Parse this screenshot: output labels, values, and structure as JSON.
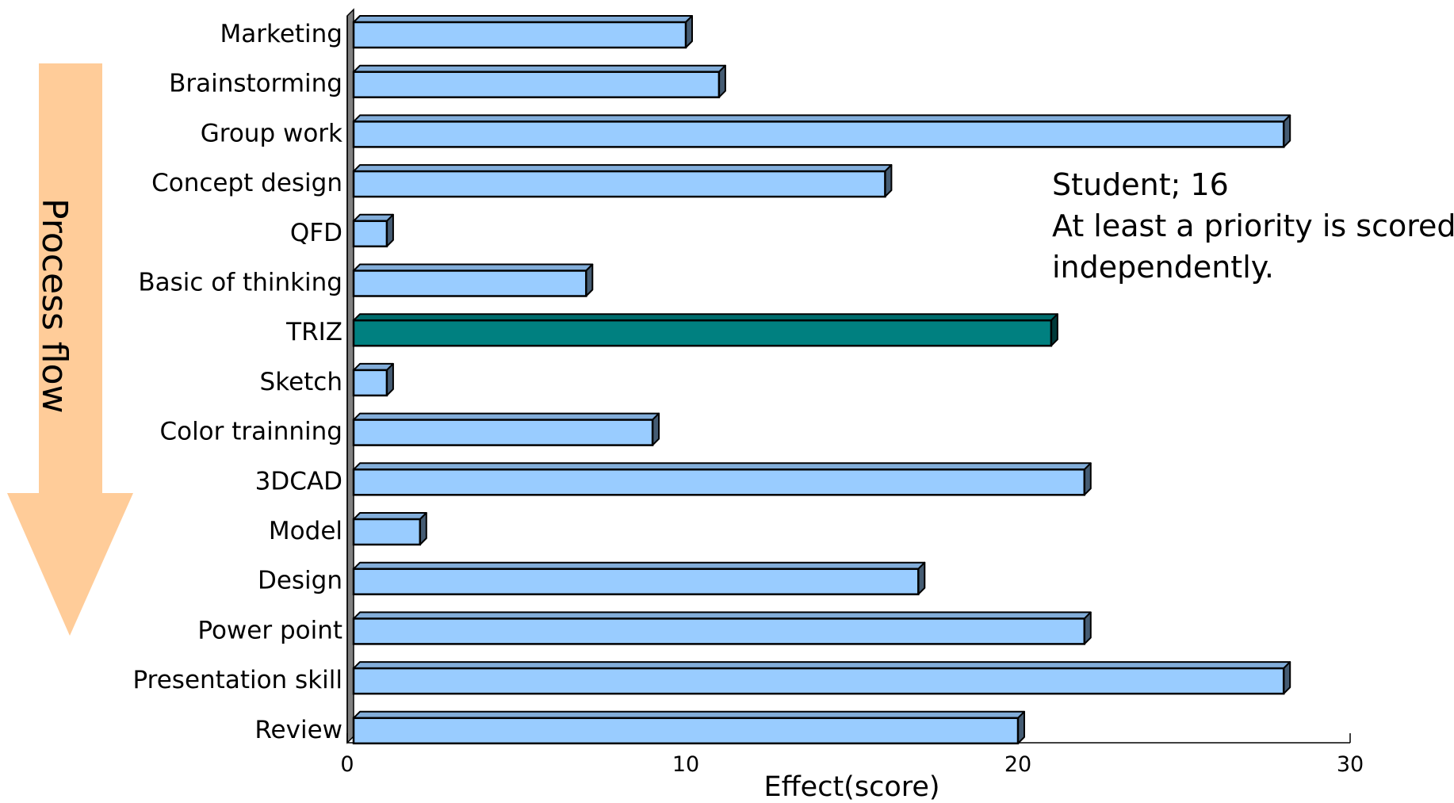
{
  "chart_data": {
    "type": "bar",
    "orientation": "horizontal",
    "categories": [
      "Marketing",
      "Brainstorming",
      "Group work",
      "Concept design",
      "QFD",
      "Basic of thinking",
      "TRIZ",
      "Sketch",
      "Color trainning",
      "3DCAD",
      "Model",
      "Design",
      "Power point",
      "Presentation skill",
      "Review"
    ],
    "values": [
      10,
      11,
      28,
      16,
      1,
      7,
      21,
      1,
      9,
      22,
      2,
      17,
      22,
      28,
      20
    ],
    "highlight_category": "TRIZ",
    "xlim": [
      0,
      30
    ],
    "xticks": [
      0,
      10,
      20,
      30
    ],
    "xlabel": "Effect(score)",
    "ylabel": "",
    "grid": false,
    "legend": null,
    "style": "3d-bar",
    "colors": {
      "bar": "#99ccff",
      "highlight_bar": "#008080",
      "bar_edge": "#000000",
      "flow_arrow": "#ffcc99"
    },
    "annotation_lines": [
      "Student; 16",
      "At least a priority is scored",
      "independently."
    ],
    "flow_arrow_label": "Process flow"
  }
}
